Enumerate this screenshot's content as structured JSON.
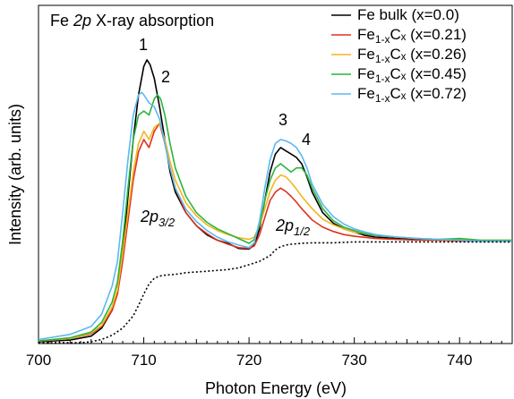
{
  "chart_data": {
    "type": "line",
    "title_prefix": "Fe ",
    "title_italic": "2p",
    "title_suffix": " X-ray absorption",
    "xlabel": "Photon Energy (eV)",
    "ylabel": "Intensity (arb. units)",
    "xlim": [
      700,
      745
    ],
    "ylim": [
      0,
      1
    ],
    "xticks": [
      700,
      710,
      720,
      730,
      740
    ],
    "y_ticks_labeled": false,
    "grid": false,
    "legend_position": "top-right",
    "series": [
      {
        "name": "Fe bulk (x=0.0)",
        "legend_main": "Fe bulk (x=0.0)",
        "legend_sub": "",
        "legend_tail": "",
        "color": "#000000",
        "x": [
          700,
          703,
          705,
          706,
          707,
          707.5,
          708,
          708.5,
          709,
          709.5,
          710,
          710.3,
          710.6,
          711,
          711.5,
          712,
          712.5,
          713,
          714,
          715,
          716,
          717,
          718,
          719,
          720,
          720.5,
          721,
          721.5,
          722,
          722.5,
          723,
          723.5,
          724,
          724.5,
          725,
          725.5,
          726,
          727,
          728,
          729,
          730,
          731,
          732,
          734,
          736,
          738,
          740,
          742,
          745
        ],
        "y": [
          0.003,
          0.009,
          0.023,
          0.051,
          0.114,
          0.185,
          0.316,
          0.514,
          0.714,
          0.871,
          0.971,
          0.994,
          0.977,
          0.929,
          0.829,
          0.714,
          0.6,
          0.529,
          0.457,
          0.411,
          0.379,
          0.36,
          0.349,
          0.331,
          0.329,
          0.343,
          0.4,
          0.5,
          0.6,
          0.663,
          0.686,
          0.674,
          0.663,
          0.651,
          0.629,
          0.583,
          0.529,
          0.457,
          0.42,
          0.4,
          0.389,
          0.377,
          0.371,
          0.366,
          0.363,
          0.36,
          0.36,
          0.357,
          0.357
        ]
      },
      {
        "name": "Fe1-xCx (x=0.21)",
        "legend_main": "Fe",
        "legend_sub": "1-x",
        "legend_tail": "Cₓ (x=0.21)",
        "color": "#e0321e",
        "x": [
          700,
          703,
          705,
          706,
          707,
          707.5,
          708,
          708.5,
          709,
          709.5,
          710,
          710.5,
          711,
          711.5,
          712,
          712.5,
          713,
          714,
          715,
          716,
          717,
          718,
          719,
          720,
          720.5,
          721,
          721.5,
          722,
          722.5,
          723,
          723.5,
          724,
          724.5,
          725,
          726,
          727,
          728,
          729,
          730,
          732,
          734,
          736,
          738,
          740,
          742,
          745
        ],
        "y": [
          0.006,
          0.014,
          0.031,
          0.057,
          0.114,
          0.171,
          0.286,
          0.429,
          0.571,
          0.671,
          0.714,
          0.686,
          0.743,
          0.771,
          0.7,
          0.614,
          0.543,
          0.457,
          0.411,
          0.383,
          0.36,
          0.346,
          0.334,
          0.331,
          0.34,
          0.38,
          0.44,
          0.5,
          0.529,
          0.543,
          0.531,
          0.514,
          0.494,
          0.471,
          0.431,
          0.406,
          0.391,
          0.38,
          0.374,
          0.366,
          0.363,
          0.36,
          0.36,
          0.357,
          0.357,
          0.357
        ]
      },
      {
        "name": "Fe1-xCx (x=0.26)",
        "legend_main": "Fe",
        "legend_sub": "1-x",
        "legend_tail": "Cₓ (x=0.26)",
        "color": "#f5b41e",
        "x": [
          700,
          703,
          705,
          706,
          707,
          707.5,
          708,
          708.5,
          709,
          709.5,
          710,
          710.5,
          711,
          711.5,
          712,
          712.5,
          713,
          714,
          715,
          716,
          717,
          718,
          719,
          720,
          720.5,
          721,
          721.5,
          722,
          722.5,
          723,
          723.5,
          724,
          724.5,
          725,
          726,
          727,
          728,
          729,
          730,
          732,
          734,
          736,
          738,
          740,
          742,
          745
        ],
        "y": [
          0.006,
          0.014,
          0.034,
          0.06,
          0.126,
          0.186,
          0.314,
          0.457,
          0.6,
          0.7,
          0.743,
          0.714,
          0.757,
          0.771,
          0.714,
          0.637,
          0.571,
          0.491,
          0.446,
          0.414,
          0.394,
          0.38,
          0.369,
          0.363,
          0.371,
          0.411,
          0.471,
          0.531,
          0.571,
          0.589,
          0.583,
          0.563,
          0.54,
          0.514,
          0.471,
          0.434,
          0.414,
          0.4,
          0.389,
          0.377,
          0.371,
          0.366,
          0.363,
          0.36,
          0.36,
          0.36
        ]
      },
      {
        "name": "Fe1-xCx (x=0.45)",
        "legend_main": "Fe",
        "legend_sub": "1-x",
        "legend_tail": "Cₓ (x=0.45)",
        "color": "#2cb43c",
        "x": [
          700,
          703,
          705,
          706,
          707,
          707.5,
          708,
          708.5,
          709,
          709.5,
          710,
          710.5,
          711,
          711.3,
          711.6,
          712,
          712.5,
          713,
          714,
          715,
          716,
          717,
          718,
          719,
          720,
          720.5,
          721,
          721.5,
          722,
          722.5,
          723,
          723.5,
          724,
          724.5,
          725,
          725.5,
          726,
          727,
          728,
          729,
          730,
          731,
          732,
          734,
          736,
          738,
          740,
          742,
          745
        ],
        "y": [
          0.006,
          0.017,
          0.037,
          0.071,
          0.143,
          0.214,
          0.357,
          0.543,
          0.714,
          0.8,
          0.814,
          0.8,
          0.857,
          0.871,
          0.857,
          0.8,
          0.7,
          0.614,
          0.514,
          0.457,
          0.423,
          0.4,
          0.383,
          0.366,
          0.349,
          0.363,
          0.414,
          0.5,
          0.571,
          0.614,
          0.629,
          0.614,
          0.6,
          0.614,
          0.614,
          0.589,
          0.543,
          0.471,
          0.429,
          0.406,
          0.394,
          0.383,
          0.377,
          0.371,
          0.366,
          0.363,
          0.366,
          0.36,
          0.36
        ]
      },
      {
        "name": "Fe1-xCx (x=0.72)",
        "legend_main": "Fe",
        "legend_sub": "1-x",
        "legend_tail": "Cₓ (x=0.72)",
        "color": "#5cb8f0",
        "x": [
          700,
          703,
          705,
          706,
          707,
          707.5,
          708,
          708.5,
          709,
          709.5,
          709.8,
          710,
          710.5,
          711,
          711.5,
          712,
          712.5,
          713,
          714,
          715,
          716,
          717,
          718,
          719,
          720,
          720.5,
          721,
          721.5,
          722,
          722.5,
          723,
          723.5,
          724,
          724.5,
          725,
          725.5,
          726,
          727,
          728,
          729,
          730,
          731,
          732,
          734,
          736,
          738,
          740,
          742,
          745
        ],
        "y": [
          0.011,
          0.029,
          0.057,
          0.1,
          0.2,
          0.286,
          0.457,
          0.643,
          0.8,
          0.871,
          0.88,
          0.871,
          0.843,
          0.829,
          0.786,
          0.7,
          0.614,
          0.543,
          0.469,
          0.426,
          0.394,
          0.371,
          0.354,
          0.343,
          0.334,
          0.351,
          0.429,
          0.543,
          0.643,
          0.7,
          0.714,
          0.709,
          0.7,
          0.686,
          0.657,
          0.614,
          0.557,
          0.486,
          0.443,
          0.417,
          0.4,
          0.389,
          0.38,
          0.371,
          0.366,
          0.363,
          0.36,
          0.357,
          0.357
        ]
      },
      {
        "name": "",
        "legend_main": "",
        "legend_sub": "",
        "legend_tail": "",
        "color": "#000000",
        "dashed": true,
        "x": [
          700,
          704,
          705,
          706,
          707,
          708,
          709,
          709.5,
          710,
          710.5,
          711,
          711.5,
          712,
          713,
          714,
          716,
          718,
          719,
          720,
          721,
          722,
          722.5,
          723,
          723.5,
          724,
          725,
          726,
          728,
          730,
          735,
          740,
          745
        ],
        "y": [
          0.0,
          0.0,
          0.003,
          0.011,
          0.026,
          0.051,
          0.094,
          0.131,
          0.171,
          0.206,
          0.226,
          0.234,
          0.237,
          0.24,
          0.246,
          0.251,
          0.257,
          0.263,
          0.274,
          0.286,
          0.306,
          0.326,
          0.337,
          0.343,
          0.346,
          0.349,
          0.351,
          0.351,
          0.354,
          0.354,
          0.354,
          0.354
        ]
      }
    ],
    "annotations": {
      "peak1": "1",
      "peak2": "2",
      "peak3": "3",
      "peak4": "4",
      "edge_32_main": "2p",
      "edge_32_sub": "3/2",
      "edge_12_main": "2p",
      "edge_12_sub": "1/2"
    }
  }
}
